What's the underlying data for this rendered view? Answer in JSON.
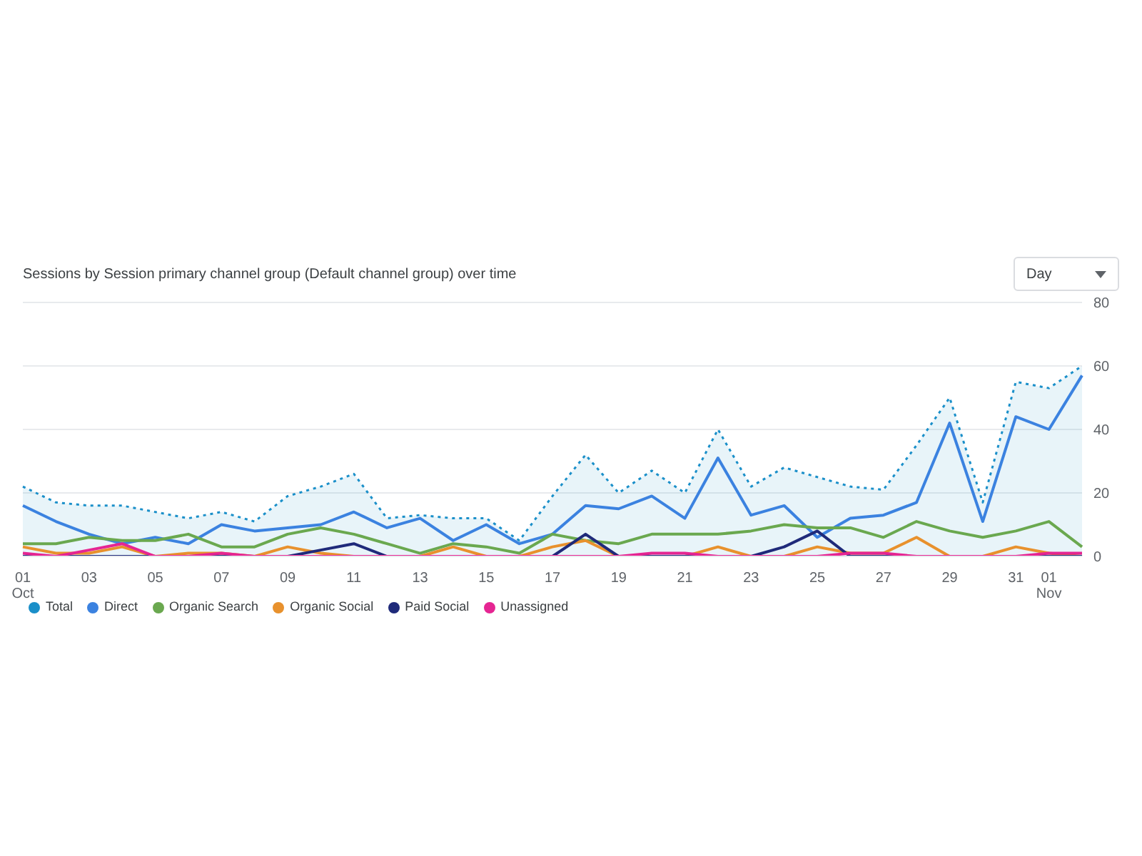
{
  "chart_data": {
    "type": "line",
    "title": "Sessions by Session primary channel group (Default channel group) over time",
    "annotations": [
      "Day"
    ],
    "categories": [
      "01 Oct",
      null,
      "03",
      null,
      "05",
      null,
      "07",
      null,
      "09",
      null,
      "11",
      null,
      "13",
      null,
      "15",
      null,
      "17",
      null,
      "19",
      null,
      "21",
      null,
      "23",
      null,
      "25",
      null,
      "27",
      null,
      "29",
      null,
      "31",
      "01 Nov",
      null
    ],
    "series": [
      {
        "name": "Total",
        "type": "area",
        "line_style": "dotted",
        "color": "#1a8fc9",
        "values": [
          22,
          17,
          16,
          16,
          14,
          12,
          14,
          11,
          19,
          22,
          26,
          12,
          13,
          12,
          12,
          5,
          19,
          32,
          20,
          27,
          20,
          40,
          22,
          28,
          25,
          22,
          21,
          35,
          50,
          17,
          55,
          53,
          60
        ]
      },
      {
        "name": "Direct",
        "color": "#3b82e0",
        "values": [
          16,
          11,
          7,
          4,
          6,
          4,
          10,
          8,
          9,
          10,
          14,
          9,
          12,
          5,
          10,
          4,
          7,
          16,
          15,
          19,
          12,
          31,
          13,
          16,
          6,
          12,
          13,
          17,
          42,
          11,
          44,
          40,
          57
        ]
      },
      {
        "name": "Organic Search",
        "color": "#6aa84f",
        "values": [
          4,
          4,
          6,
          5,
          5,
          7,
          3,
          3,
          7,
          9,
          7,
          4,
          1,
          4,
          3,
          1,
          7,
          5,
          4,
          7,
          7,
          7,
          8,
          10,
          9,
          9,
          6,
          11,
          8,
          6,
          8,
          11,
          3
        ]
      },
      {
        "name": "Organic Social",
        "color": "#e8912d",
        "values": [
          3,
          1,
          1,
          3,
          0,
          1,
          1,
          0,
          3,
          1,
          0,
          0,
          0,
          3,
          0,
          0,
          3,
          5,
          0,
          0,
          0,
          3,
          0,
          0,
          3,
          1,
          1,
          6,
          0,
          0,
          3,
          1,
          0
        ]
      },
      {
        "name": "Paid Social",
        "color": "#1f2a7a",
        "values": [
          0,
          0,
          0,
          0,
          0,
          0,
          0,
          0,
          0,
          2,
          4,
          0,
          0,
          0,
          0,
          0,
          0,
          7,
          0,
          0,
          0,
          0,
          0,
          3,
          8,
          0,
          0,
          0,
          0,
          0,
          0,
          0,
          0
        ]
      },
      {
        "name": "Unassigned",
        "color": "#e52592",
        "values": [
          1,
          0,
          2,
          4,
          0,
          0,
          1,
          0,
          0,
          0,
          0,
          0,
          0,
          0,
          0,
          0,
          0,
          0,
          0,
          1,
          1,
          0,
          0,
          0,
          0,
          1,
          1,
          0,
          0,
          0,
          0,
          1,
          1
        ]
      }
    ],
    "ylim": [
      0,
      80
    ],
    "yticks": [
      0,
      20,
      40,
      60,
      80
    ],
    "grid": "y",
    "legend": "bottom left"
  }
}
